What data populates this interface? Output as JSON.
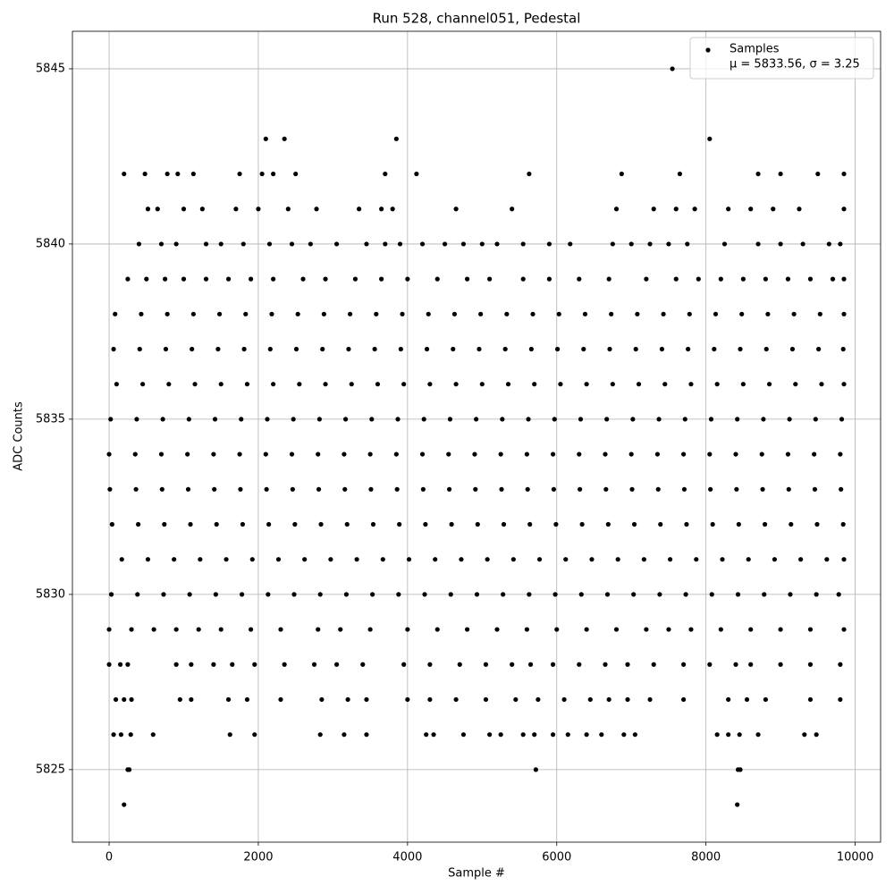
{
  "chart_data": {
    "type": "scatter",
    "title": "Run 528, channel051, Pedestal",
    "xlabel": "Sample #",
    "ylabel": "ADC Counts",
    "xlim": [
      -492,
      10341
    ],
    "ylim": [
      5822.93,
      5846.07
    ],
    "xticks": [
      0,
      2000,
      4000,
      6000,
      8000,
      10000
    ],
    "yticks": [
      5825,
      5830,
      5835,
      5840,
      5845
    ],
    "grid": true,
    "legend": "upper right",
    "annotation": "μ = 5833.56, σ = 3.25",
    "series": [
      {
        "name": "Samples",
        "color": "#000000",
        "x": [
          7550,
          2100,
          2350,
          3850,
          8050,
          200,
          480,
          780,
          920,
          1130,
          1750,
          2050,
          2200,
          2500,
          3700,
          4120,
          5630,
          6870,
          7650,
          8700,
          9000,
          9500,
          9850,
          520,
          650,
          1000,
          1250,
          1700,
          2000,
          2400,
          2780,
          3350,
          3650,
          3800,
          4650,
          5400,
          6800,
          7300,
          7600,
          7850,
          8300,
          8600,
          8900,
          9250,
          9850,
          400,
          700,
          900,
          1300,
          1500,
          1800,
          2150,
          2450,
          2700,
          3050,
          3450,
          3700,
          3900,
          4200,
          4500,
          4750,
          5000,
          5200,
          5550,
          5900,
          6180,
          6750,
          7000,
          7250,
          7500,
          7750,
          8250,
          8700,
          9000,
          9300,
          9650,
          9800,
          250,
          500,
          750,
          1000,
          1300,
          1600,
          1900,
          2200,
          2600,
          2900,
          3300,
          3650,
          4000,
          4400,
          4800,
          5100,
          5550,
          5900,
          6300,
          6700,
          7200,
          7600,
          7900,
          8200,
          8500,
          8800,
          9100,
          9400,
          9700,
          9850,
          80,
          430,
          780,
          1130,
          1480,
          1830,
          2180,
          2530,
          2880,
          3230,
          3580,
          3930,
          4280,
          4630,
          4980,
          5330,
          5680,
          6030,
          6380,
          6730,
          7080,
          7430,
          7780,
          8130,
          8480,
          8830,
          9180,
          9530,
          9850,
          60,
          410,
          760,
          1110,
          1460,
          1810,
          2160,
          2510,
          2860,
          3210,
          3560,
          3910,
          4260,
          4610,
          4960,
          5310,
          5660,
          6010,
          6360,
          6710,
          7060,
          7410,
          7760,
          8110,
          8460,
          8810,
          9160,
          9510,
          9840,
          100,
          450,
          800,
          1150,
          1500,
          1850,
          2200,
          2550,
          2900,
          3250,
          3600,
          3950,
          4300,
          4650,
          5000,
          5350,
          5700,
          6050,
          6400,
          6750,
          7100,
          7450,
          7800,
          8150,
          8500,
          8850,
          9200,
          9550,
          9850,
          20,
          370,
          720,
          1070,
          1420,
          1770,
          2120,
          2470,
          2820,
          3170,
          3520,
          3870,
          4220,
          4570,
          4920,
          5270,
          5620,
          5970,
          6320,
          6670,
          7020,
          7370,
          7720,
          8070,
          8420,
          8770,
          9120,
          9470,
          9820,
          0,
          350,
          700,
          1050,
          1400,
          1750,
          2100,
          2450,
          2800,
          3150,
          3500,
          3850,
          4200,
          4550,
          4900,
          5250,
          5600,
          5950,
          6300,
          6650,
          7000,
          7350,
          7700,
          8050,
          8400,
          8750,
          9100,
          9450,
          9800,
          10,
          360,
          710,
          1060,
          1410,
          1760,
          2110,
          2460,
          2810,
          3160,
          3510,
          3860,
          4210,
          4560,
          4910,
          5260,
          5610,
          5960,
          6310,
          6660,
          7010,
          7360,
          7710,
          8060,
          8410,
          8760,
          9110,
          9460,
          9810,
          40,
          390,
          740,
          1090,
          1440,
          1790,
          2140,
          2490,
          2840,
          3190,
          3540,
          3890,
          4240,
          4590,
          4940,
          5290,
          5640,
          5990,
          6340,
          6690,
          7040,
          7390,
          7740,
          8090,
          8440,
          8790,
          9140,
          9490,
          9840,
          170,
          520,
          870,
          1220,
          1570,
          1920,
          2270,
          2620,
          2970,
          3320,
          3670,
          4020,
          4370,
          4720,
          5070,
          5420,
          5770,
          6120,
          6470,
          6820,
          7170,
          7520,
          7870,
          8220,
          8570,
          8920,
          9270,
          9620,
          9850,
          30,
          380,
          730,
          1080,
          1430,
          1780,
          2130,
          2480,
          2830,
          3180,
          3530,
          3880,
          4230,
          4580,
          4930,
          5280,
          5630,
          5980,
          6330,
          6680,
          7030,
          7380,
          7730,
          8080,
          8430,
          8780,
          9130,
          9480,
          9780,
          0,
          300,
          600,
          900,
          1200,
          1500,
          1900,
          2300,
          2800,
          3100,
          3500,
          4000,
          4400,
          4800,
          5200,
          5600,
          6000,
          6400,
          6800,
          7200,
          7500,
          7800,
          8200,
          8600,
          9000,
          9400,
          9850,
          0,
          150,
          250,
          900,
          1100,
          1400,
          1650,
          1950,
          2350,
          2750,
          3050,
          3400,
          3950,
          4300,
          4700,
          5050,
          5400,
          5650,
          5950,
          6300,
          6650,
          6950,
          7300,
          7700,
          8050,
          8400,
          8600,
          9000,
          9400,
          9800,
          90,
          200,
          300,
          950,
          1100,
          1600,
          1850,
          2300,
          2850,
          3200,
          3450,
          4000,
          4300,
          4650,
          5050,
          5450,
          5750,
          6100,
          6450,
          6700,
          6950,
          7250,
          7700,
          8300,
          8550,
          8800,
          9400,
          9800,
          60,
          160,
          290,
          590,
          1620,
          1950,
          2830,
          3150,
          3450,
          4250,
          4350,
          4750,
          5100,
          5250,
          5550,
          5700,
          5950,
          6150,
          6400,
          6600,
          6900,
          7050,
          8150,
          8300,
          8450,
          8700,
          9320,
          9480,
          250,
          270,
          5720,
          8430,
          8460,
          200,
          8420
        ],
        "values": [
          5845,
          5843,
          5843,
          5843,
          5843,
          5842,
          5842,
          5842,
          5842,
          5842,
          5842,
          5842,
          5842,
          5842,
          5842,
          5842,
          5842,
          5842,
          5842,
          5842,
          5842,
          5842,
          5842,
          5841,
          5841,
          5841,
          5841,
          5841,
          5841,
          5841,
          5841,
          5841,
          5841,
          5841,
          5841,
          5841,
          5841,
          5841,
          5841,
          5841,
          5841,
          5841,
          5841,
          5841,
          5841,
          5840,
          5840,
          5840,
          5840,
          5840,
          5840,
          5840,
          5840,
          5840,
          5840,
          5840,
          5840,
          5840,
          5840,
          5840,
          5840,
          5840,
          5840,
          5840,
          5840,
          5840,
          5840,
          5840,
          5840,
          5840,
          5840,
          5840,
          5840,
          5840,
          5840,
          5840,
          5840,
          5839,
          5839,
          5839,
          5839,
          5839,
          5839,
          5839,
          5839,
          5839,
          5839,
          5839,
          5839,
          5839,
          5839,
          5839,
          5839,
          5839,
          5839,
          5839,
          5839,
          5839,
          5839,
          5839,
          5839,
          5839,
          5839,
          5839,
          5839,
          5839,
          5839,
          5838,
          5838,
          5838,
          5838,
          5838,
          5838,
          5838,
          5838,
          5838,
          5838,
          5838,
          5838,
          5838,
          5838,
          5838,
          5838,
          5838,
          5838,
          5838,
          5838,
          5838,
          5838,
          5838,
          5838,
          5838,
          5838,
          5838,
          5838,
          5838,
          5837,
          5837,
          5837,
          5837,
          5837,
          5837,
          5837,
          5837,
          5837,
          5837,
          5837,
          5837,
          5837,
          5837,
          5837,
          5837,
          5837,
          5837,
          5837,
          5837,
          5837,
          5837,
          5837,
          5837,
          5837,
          5837,
          5837,
          5837,
          5837,
          5836,
          5836,
          5836,
          5836,
          5836,
          5836,
          5836,
          5836,
          5836,
          5836,
          5836,
          5836,
          5836,
          5836,
          5836,
          5836,
          5836,
          5836,
          5836,
          5836,
          5836,
          5836,
          5836,
          5836,
          5836,
          5836,
          5836,
          5836,
          5836,
          5835,
          5835,
          5835,
          5835,
          5835,
          5835,
          5835,
          5835,
          5835,
          5835,
          5835,
          5835,
          5835,
          5835,
          5835,
          5835,
          5835,
          5835,
          5835,
          5835,
          5835,
          5835,
          5835,
          5835,
          5835,
          5835,
          5835,
          5835,
          5835,
          5834,
          5834,
          5834,
          5834,
          5834,
          5834,
          5834,
          5834,
          5834,
          5834,
          5834,
          5834,
          5834,
          5834,
          5834,
          5834,
          5834,
          5834,
          5834,
          5834,
          5834,
          5834,
          5834,
          5834,
          5834,
          5834,
          5834,
          5834,
          5834,
          5833,
          5833,
          5833,
          5833,
          5833,
          5833,
          5833,
          5833,
          5833,
          5833,
          5833,
          5833,
          5833,
          5833,
          5833,
          5833,
          5833,
          5833,
          5833,
          5833,
          5833,
          5833,
          5833,
          5833,
          5833,
          5833,
          5833,
          5833,
          5833,
          5832,
          5832,
          5832,
          5832,
          5832,
          5832,
          5832,
          5832,
          5832,
          5832,
          5832,
          5832,
          5832,
          5832,
          5832,
          5832,
          5832,
          5832,
          5832,
          5832,
          5832,
          5832,
          5832,
          5832,
          5832,
          5832,
          5832,
          5832,
          5832,
          5831,
          5831,
          5831,
          5831,
          5831,
          5831,
          5831,
          5831,
          5831,
          5831,
          5831,
          5831,
          5831,
          5831,
          5831,
          5831,
          5831,
          5831,
          5831,
          5831,
          5831,
          5831,
          5831,
          5831,
          5831,
          5831,
          5831,
          5831,
          5831,
          5830,
          5830,
          5830,
          5830,
          5830,
          5830,
          5830,
          5830,
          5830,
          5830,
          5830,
          5830,
          5830,
          5830,
          5830,
          5830,
          5830,
          5830,
          5830,
          5830,
          5830,
          5830,
          5830,
          5830,
          5830,
          5830,
          5830,
          5830,
          5830,
          5829,
          5829,
          5829,
          5829,
          5829,
          5829,
          5829,
          5829,
          5829,
          5829,
          5829,
          5829,
          5829,
          5829,
          5829,
          5829,
          5829,
          5829,
          5829,
          5829,
          5829,
          5829,
          5829,
          5829,
          5829,
          5829,
          5829,
          5828,
          5828,
          5828,
          5828,
          5828,
          5828,
          5828,
          5828,
          5828,
          5828,
          5828,
          5828,
          5828,
          5828,
          5828,
          5828,
          5828,
          5828,
          5828,
          5828,
          5828,
          5828,
          5828,
          5828,
          5828,
          5828,
          5828,
          5828,
          5828,
          5828,
          5827,
          5827,
          5827,
          5827,
          5827,
          5827,
          5827,
          5827,
          5827,
          5827,
          5827,
          5827,
          5827,
          5827,
          5827,
          5827,
          5827,
          5827,
          5827,
          5827,
          5827,
          5827,
          5827,
          5827,
          5827,
          5827,
          5827,
          5827,
          5826,
          5826,
          5826,
          5826,
          5826,
          5826,
          5826,
          5826,
          5826,
          5826,
          5826,
          5826,
          5826,
          5826,
          5826,
          5826,
          5826,
          5826,
          5826,
          5826,
          5826,
          5826,
          5826,
          5826,
          5826,
          5826,
          5826,
          5826,
          5825,
          5825,
          5825,
          5825,
          5825,
          5824,
          5824
        ]
      }
    ]
  }
}
